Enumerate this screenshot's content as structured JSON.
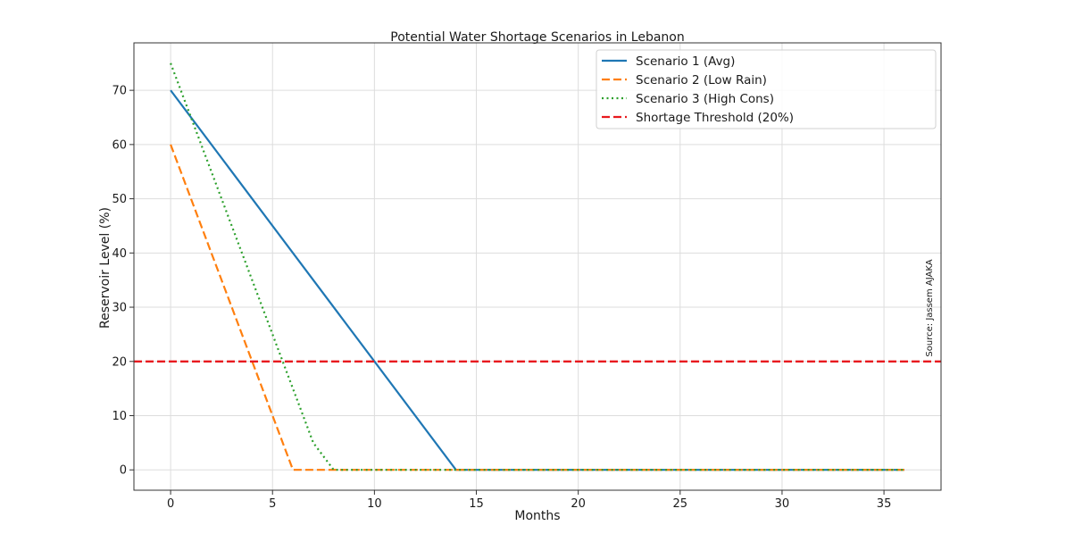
{
  "chart_data": {
    "type": "line",
    "title": "Potential Water Shortage Scenarios in Lebanon",
    "xlabel": "Months",
    "ylabel": "Reservoir Level (%)",
    "xlim": [
      -1.8,
      37.8
    ],
    "ylim": [
      -3.75,
      78.75
    ],
    "xticks": [
      0,
      5,
      10,
      15,
      20,
      25,
      30,
      35
    ],
    "yticks": [
      0,
      10,
      20,
      30,
      40,
      50,
      60,
      70
    ],
    "grid": true,
    "legend_position": "top-right",
    "series": [
      {
        "name": "Scenario 1 (Avg)",
        "color": "#1f77b4",
        "style": "solid",
        "points": [
          [
            0,
            70
          ],
          [
            14,
            0
          ],
          [
            36,
            0
          ]
        ]
      },
      {
        "name": "Scenario 2 (Low Rain)",
        "color": "#ff7f0e",
        "style": "dashed",
        "points": [
          [
            0,
            60
          ],
          [
            6,
            0
          ],
          [
            36,
            0
          ]
        ]
      },
      {
        "name": "Scenario 3 (High Cons)",
        "color": "#2ca02c",
        "style": "dotted",
        "points": [
          [
            0,
            75
          ],
          [
            7,
            5
          ],
          [
            8,
            0
          ],
          [
            36,
            0
          ]
        ]
      }
    ],
    "threshold": {
      "name": "Shortage Threshold (20%)",
      "value": 20,
      "color": "#e8191e",
      "style": "dashed"
    },
    "annotation": "Source: Jassem AJAKA"
  }
}
